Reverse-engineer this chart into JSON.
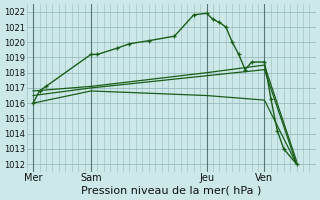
{
  "background_color": "#cce8e8",
  "grid_color": "#99bbbb",
  "line_color": "#1a5e1a",
  "ylim": [
    1011.5,
    1022.5
  ],
  "yticks": [
    1012,
    1013,
    1014,
    1015,
    1016,
    1017,
    1018,
    1019,
    1020,
    1021,
    1022
  ],
  "xlabel": "Pression niveau de la mer( hPa )",
  "xtick_labels": [
    "Mer",
    "Sam",
    "Jeu",
    "Ven"
  ],
  "xtick_positions": [
    0,
    9,
    27,
    36
  ],
  "vline_positions": [
    0,
    9,
    27,
    36
  ],
  "xlim": [
    -1,
    44
  ],
  "series": [
    {
      "x": [
        0,
        1,
        2,
        9,
        10,
        13,
        15,
        18,
        22,
        25,
        27,
        28,
        29,
        30,
        31,
        32,
        33,
        34,
        36,
        37,
        38,
        39,
        41
      ],
      "y": [
        1016.0,
        1016.8,
        1017.1,
        1019.2,
        1019.2,
        1019.6,
        1019.9,
        1020.1,
        1020.4,
        1021.8,
        1021.9,
        1021.5,
        1021.3,
        1021.0,
        1020.0,
        1019.2,
        1018.2,
        1018.7,
        1018.7,
        1016.3,
        1014.2,
        1013.0,
        1012.0
      ],
      "marker": true,
      "lw": 1.0
    },
    {
      "x": [
        0,
        9,
        27,
        36,
        41
      ],
      "y": [
        1016.8,
        1017.1,
        1018.0,
        1018.5,
        1012.2
      ],
      "marker": false,
      "lw": 0.9
    },
    {
      "x": [
        0,
        9,
        27,
        36,
        41
      ],
      "y": [
        1016.5,
        1017.0,
        1017.8,
        1018.2,
        1012.0
      ],
      "marker": false,
      "lw": 0.9
    },
    {
      "x": [
        0,
        9,
        27,
        36,
        41
      ],
      "y": [
        1016.0,
        1016.8,
        1016.5,
        1016.2,
        1012.0
      ],
      "marker": false,
      "lw": 0.9
    }
  ]
}
